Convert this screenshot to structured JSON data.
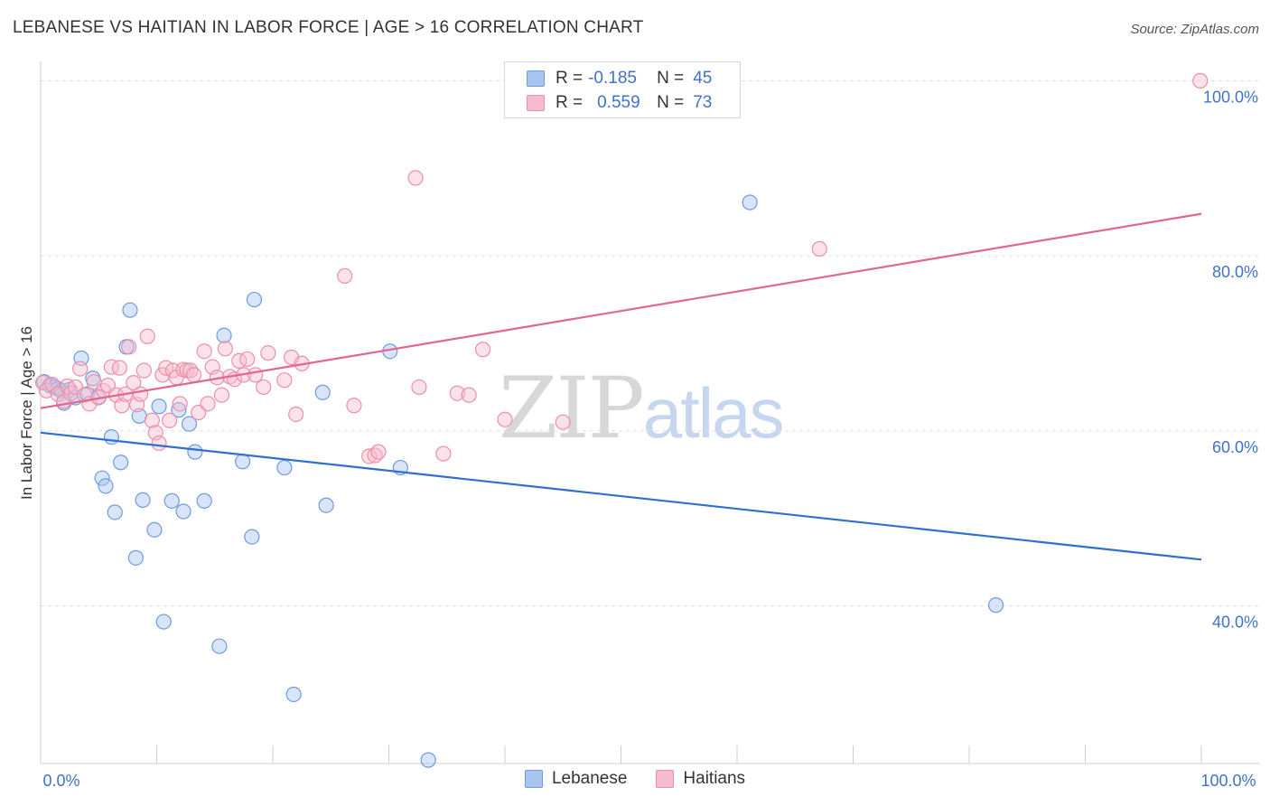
{
  "header": {
    "title": "LEBANESE VS HAITIAN IN LABOR FORCE | AGE > 16 CORRELATION CHART",
    "source": "Source: ZipAtlas.com"
  },
  "watermark": {
    "zip": "ZIP",
    "atlas": "atlas"
  },
  "legend": {
    "rows": [
      {
        "r_label": "R =",
        "r_value": "-0.185",
        "n_label": "N =",
        "n_value": "45",
        "color": "#a9c5ef",
        "stroke": "#6f9be0"
      },
      {
        "r_label": "R =",
        "r_value": "0.559",
        "n_label": "N =",
        "n_value": "73",
        "color": "#f6bccd",
        "stroke": "#ec8fac"
      }
    ]
  },
  "bottom_legend": [
    "Lebanese",
    "Haitians"
  ],
  "chart_data": {
    "type": "scatter",
    "title": "LEBANESE VS HAITIAN IN LABOR FORCE | AGE > 16 CORRELATION CHART",
    "xlabel": "",
    "ylabel": "In Labor Force | Age > 16",
    "xlim": [
      0,
      100
    ],
    "ylim": [
      22,
      102
    ],
    "x_tick_labels": [
      "0.0%",
      "100.0%"
    ],
    "y_ticks": [
      40,
      60,
      80,
      100
    ],
    "y_tick_labels": [
      "40.0%",
      "60.0%",
      "80.0%",
      "100.0%"
    ],
    "grid": true,
    "series": [
      {
        "name": "Lebanese",
        "color": "#a9c5ef",
        "stroke": "#6f9be0",
        "line_color": "#2f6fd0",
        "trend": [
          [
            0,
            59.8
          ],
          [
            100,
            45.3
          ]
        ],
        "points": [
          [
            0.3,
            65.6
          ],
          [
            0.8,
            65.2
          ],
          [
            1.2,
            65.0
          ],
          [
            1.5,
            64.8
          ],
          [
            1.8,
            64.6
          ],
          [
            2.0,
            63.2
          ],
          [
            2.5,
            64.7
          ],
          [
            3.0,
            63.8
          ],
          [
            3.5,
            68.3
          ],
          [
            4.0,
            64.2
          ],
          [
            4.5,
            66.0
          ],
          [
            5.0,
            63.9
          ],
          [
            5.3,
            54.6
          ],
          [
            5.6,
            53.7
          ],
          [
            6.1,
            59.3
          ],
          [
            6.4,
            50.7
          ],
          [
            6.9,
            56.4
          ],
          [
            7.4,
            69.6
          ],
          [
            7.7,
            73.8
          ],
          [
            8.2,
            45.5
          ],
          [
            8.5,
            61.7
          ],
          [
            8.8,
            52.1
          ],
          [
            9.8,
            48.7
          ],
          [
            10.2,
            62.8
          ],
          [
            10.6,
            38.2
          ],
          [
            11.3,
            52.0
          ],
          [
            11.9,
            62.4
          ],
          [
            12.3,
            50.8
          ],
          [
            12.8,
            60.8
          ],
          [
            13.3,
            57.6
          ],
          [
            14.1,
            52.0
          ],
          [
            15.4,
            35.4
          ],
          [
            15.8,
            70.9
          ],
          [
            17.4,
            56.5
          ],
          [
            18.2,
            47.9
          ],
          [
            18.4,
            75.0
          ],
          [
            21.0,
            55.8
          ],
          [
            21.8,
            29.9
          ],
          [
            24.3,
            64.4
          ],
          [
            24.6,
            51.5
          ],
          [
            30.1,
            69.1
          ],
          [
            31.0,
            55.8
          ],
          [
            33.4,
            22.4
          ],
          [
            61.1,
            86.1
          ],
          [
            82.3,
            40.1
          ]
        ]
      },
      {
        "name": "Haitians",
        "color": "#f6bccd",
        "stroke": "#ec8fac",
        "line_color": "#e2668f",
        "trend": [
          [
            0,
            62.6
          ],
          [
            100,
            84.8
          ]
        ],
        "points": [
          [
            0.2,
            65.5
          ],
          [
            0.5,
            64.6
          ],
          [
            1.0,
            65.3
          ],
          [
            1.5,
            64.2
          ],
          [
            2.0,
            63.4
          ],
          [
            2.3,
            65.1
          ],
          [
            2.6,
            64.3
          ],
          [
            3.0,
            65.0
          ],
          [
            3.4,
            67.1
          ],
          [
            3.8,
            64.1
          ],
          [
            4.2,
            63.1
          ],
          [
            4.6,
            65.6
          ],
          [
            5.0,
            63.8
          ],
          [
            5.4,
            64.6
          ],
          [
            5.8,
            65.2
          ],
          [
            6.1,
            67.3
          ],
          [
            6.5,
            64.1
          ],
          [
            6.8,
            67.2
          ],
          [
            7.0,
            62.9
          ],
          [
            7.3,
            64.2
          ],
          [
            7.6,
            69.6
          ],
          [
            8.0,
            65.5
          ],
          [
            8.3,
            63.0
          ],
          [
            8.6,
            64.2
          ],
          [
            8.9,
            66.9
          ],
          [
            9.2,
            70.8
          ],
          [
            9.6,
            61.2
          ],
          [
            9.9,
            59.8
          ],
          [
            10.2,
            58.6
          ],
          [
            10.5,
            66.4
          ],
          [
            10.8,
            67.2
          ],
          [
            11.1,
            61.2
          ],
          [
            11.4,
            66.9
          ],
          [
            11.7,
            66.1
          ],
          [
            12.0,
            63.1
          ],
          [
            12.3,
            67.0
          ],
          [
            12.6,
            66.9
          ],
          [
            12.9,
            66.9
          ],
          [
            13.2,
            66.4
          ],
          [
            13.6,
            62.1
          ],
          [
            14.1,
            69.1
          ],
          [
            14.4,
            63.1
          ],
          [
            14.8,
            67.3
          ],
          [
            15.2,
            66.1
          ],
          [
            15.6,
            64.1
          ],
          [
            15.9,
            69.4
          ],
          [
            16.3,
            66.2
          ],
          [
            16.7,
            65.9
          ],
          [
            17.1,
            68.0
          ],
          [
            17.5,
            66.4
          ],
          [
            17.8,
            68.2
          ],
          [
            18.5,
            66.4
          ],
          [
            19.2,
            65.0
          ],
          [
            19.6,
            68.9
          ],
          [
            21.0,
            65.8
          ],
          [
            21.6,
            68.4
          ],
          [
            22.0,
            61.9
          ],
          [
            22.5,
            67.7
          ],
          [
            26.2,
            77.7
          ],
          [
            27.0,
            62.9
          ],
          [
            28.3,
            57.1
          ],
          [
            28.8,
            57.2
          ],
          [
            29.1,
            57.6
          ],
          [
            32.3,
            88.9
          ],
          [
            32.6,
            65.0
          ],
          [
            34.7,
            57.4
          ],
          [
            35.9,
            64.3
          ],
          [
            36.9,
            64.1
          ],
          [
            38.1,
            69.3
          ],
          [
            40.0,
            61.3
          ],
          [
            45.0,
            61.0
          ],
          [
            67.1,
            80.8
          ],
          [
            99.9,
            100.0
          ]
        ]
      }
    ]
  }
}
